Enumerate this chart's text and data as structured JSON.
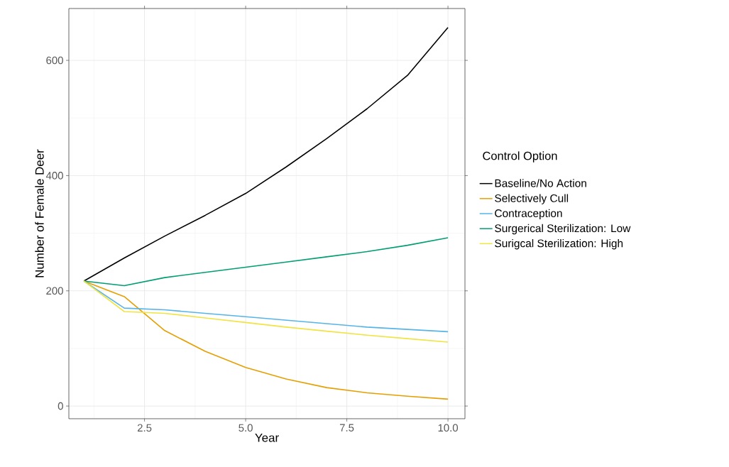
{
  "chart_data": {
    "type": "line",
    "xlabel": "Year",
    "ylabel": "Number of Female Deer",
    "legend_title": "Control Option",
    "x": [
      1,
      2,
      3,
      4,
      5,
      6,
      7,
      8,
      9,
      10
    ],
    "series": [
      {
        "name": "Baseline/No Action",
        "color": "#000000",
        "values": [
          217,
          257,
          295,
          331,
          369,
          415,
          464,
          516,
          574,
          657
        ]
      },
      {
        "name": "Selectively Cull",
        "color": "#E69F00",
        "values": [
          217,
          190,
          131,
          95,
          67,
          47,
          32,
          23,
          17,
          12
        ]
      },
      {
        "name": "Contraception",
        "color": "#56B4E9",
        "values": [
          217,
          170,
          167,
          161,
          155,
          149,
          143,
          137,
          133,
          129
        ]
      },
      {
        "name": "Surgerical Sterilization: Low",
        "color": "#009E73",
        "values": [
          217,
          209,
          223,
          232,
          241,
          250,
          259,
          268,
          279,
          292
        ]
      },
      {
        "name": "Surigcal Sterilization: High",
        "color": "#F0E442",
        "values": [
          217,
          164,
          161,
          153,
          145,
          137,
          130,
          123,
          117,
          111
        ]
      }
    ],
    "xlim": [
      0.63,
      10.42
    ],
    "ylim": [
      -22,
      690
    ],
    "xticks": [
      {
        "value": 2.5,
        "label": "2.5"
      },
      {
        "value": 5,
        "label": "5.0"
      },
      {
        "value": 7.5,
        "label": "7.5"
      },
      {
        "value": 10,
        "label": "10.0"
      }
    ],
    "yticks": [
      0,
      200,
      400,
      600
    ],
    "grid": true,
    "legend": "right",
    "marker": "none",
    "line_style": "solid"
  }
}
